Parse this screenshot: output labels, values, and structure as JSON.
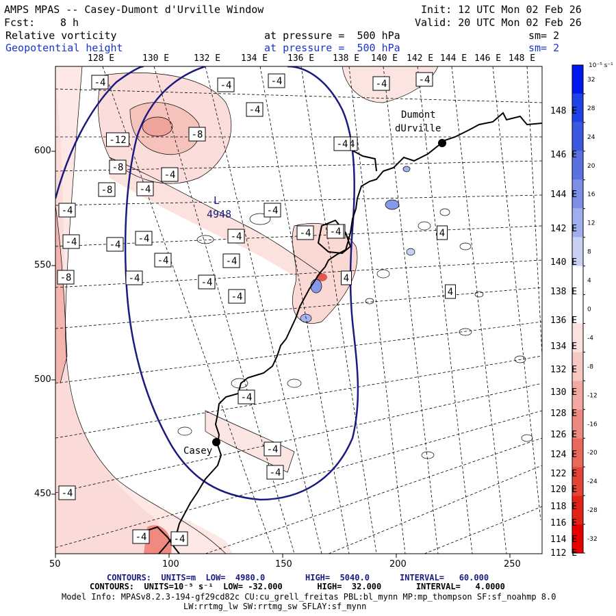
{
  "header": {
    "title": "AMPS MPAS -- Casey-Dumont d'Urville Window",
    "init": "Init: 12 UTC Mon 02 Feb 26",
    "fcst_label": "Fcst:",
    "fcst_value": "8 h",
    "valid": "Valid: 20 UTC Mon 02 Feb 26",
    "field1_name": "Relative vorticity",
    "field1_level": "at pressure =  500 hPa",
    "field1_sm": "sm= 2",
    "field2_name": "Geopotential height",
    "field2_level": "at pressure =  500 hPa",
    "field2_sm": "sm= 2"
  },
  "map": {
    "lon_labels_top": [
      "128 E",
      "130 E",
      "132 E",
      "134 E",
      "136 E",
      "138 E",
      "140 E",
      "142 E",
      "144 E",
      "146 E",
      "148 E"
    ],
    "lat_labels_right": [
      "148 E",
      "146 E",
      "144 E",
      "142 E",
      "140 E",
      "138 E",
      "136 E",
      "134 E",
      "132 E",
      "130 E",
      "128 E",
      "126 E",
      "124 E",
      "122 E",
      "120 E",
      "118 E",
      "116 E",
      "114 E",
      "112 E"
    ],
    "x_ticks": [
      "50",
      "100",
      "150",
      "200",
      "250"
    ],
    "y_ticks": [
      "600",
      "550",
      "500",
      "450"
    ],
    "stations": [
      {
        "name_line1": "Dumont",
        "name_line2": "dUrville"
      },
      {
        "name_line1": "Casey",
        "name_line2": ""
      }
    ],
    "low_marker": {
      "letter": "L",
      "value": "4948"
    },
    "contour_labels": [
      "-4",
      "-4",
      "-4",
      "-4",
      "-4",
      "-12",
      "-8",
      "-8",
      "-4",
      "-8",
      "-4",
      "-4",
      "-4",
      "-4",
      "-4",
      "-4",
      "-4",
      "-4",
      "-4",
      "-4",
      "-8",
      "-4",
      "-4",
      "-4",
      "-4",
      "-8",
      "-4",
      "-4",
      "-4",
      "4",
      "-4",
      "4",
      "4",
      "-4",
      "-4",
      "-4",
      "-4",
      "-4"
    ]
  },
  "colorbar": {
    "unit": "10⁻⁵ s⁻¹",
    "labels": [
      "32",
      "28",
      "24",
      "20",
      "16",
      "12",
      "8",
      "4",
      "0",
      "-4",
      "-8",
      "-12",
      "-16",
      "-20",
      "-24",
      "-28",
      "-32"
    ],
    "colors": [
      "#0018f0",
      "#2040e8",
      "#3c58e0",
      "#5a72e0",
      "#7c8ee6",
      "#a0aeee",
      "#c8d0f4",
      "#ffffff",
      "#ffffff",
      "#fbe2e0",
      "#f6c8c2",
      "#f1aaa2",
      "#ec8a80",
      "#e8685c",
      "#e44438",
      "#e02218",
      "#e80000"
    ]
  },
  "footer": {
    "line1_a": "CONTOURS:  UNITS=m  LOW=  4980.0",
    "line1_b": "HIGH=  5040.0",
    "line1_c": "INTERVAL=   60.000",
    "line2": "CONTOURS:  UNITS=10⁻⁵ s⁻¹  LOW= -32.000       HIGH=  32.000       INTERVAL=   4.0000",
    "line3": "Model Info: MPASv8.2.3-194-gf29cd82c CU:cu_grell_freitas PBL:bl_mynn MP:mp_thompson SF:sf_noahmp 8.0",
    "line4": "LW:rrtmg_lw SW:rrtmg_sw SFLAY:sf_mynn"
  }
}
